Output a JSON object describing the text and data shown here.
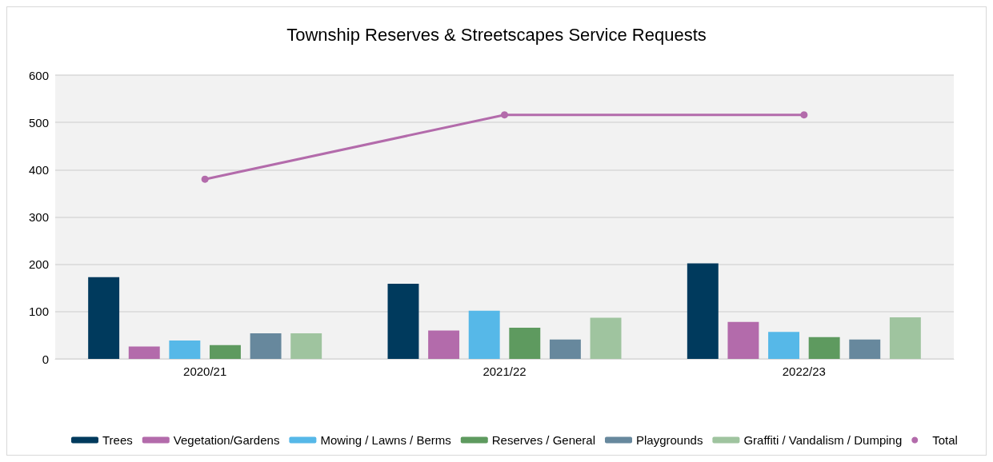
{
  "chart_data": {
    "type": "bar",
    "title": "Township Reserves & Streetscapes Service Requests",
    "categories": [
      "2020/21",
      "2021/22",
      "2022/23"
    ],
    "series": [
      {
        "name": "Trees",
        "color": "#003a5d",
        "values": [
          173,
          159,
          202
        ]
      },
      {
        "name": "Vegetation/Gardens",
        "color": "#b36bab",
        "values": [
          26,
          60,
          78
        ]
      },
      {
        "name": "Mowing / Lawns / Berms",
        "color": "#56b8e8",
        "values": [
          39,
          102,
          57
        ]
      },
      {
        "name": "Reserves / General",
        "color": "#5e9a5f",
        "values": [
          29,
          66,
          46
        ]
      },
      {
        "name": "Playgrounds",
        "color": "#67889d",
        "values": [
          54,
          41,
          41
        ]
      },
      {
        "name": "Graffiti / Vandalism / Dumping",
        "color": "#9fc49f",
        "values": [
          54,
          87,
          88
        ]
      },
      {
        "name": "Total",
        "type": "line",
        "color": "#b36bab",
        "values": [
          380,
          516,
          516
        ]
      }
    ],
    "ylim": [
      0,
      600
    ],
    "yticks": [
      0,
      100,
      200,
      300,
      400,
      500,
      600
    ],
    "grid": "y",
    "legend": "bottom",
    "marker": "circle"
  }
}
